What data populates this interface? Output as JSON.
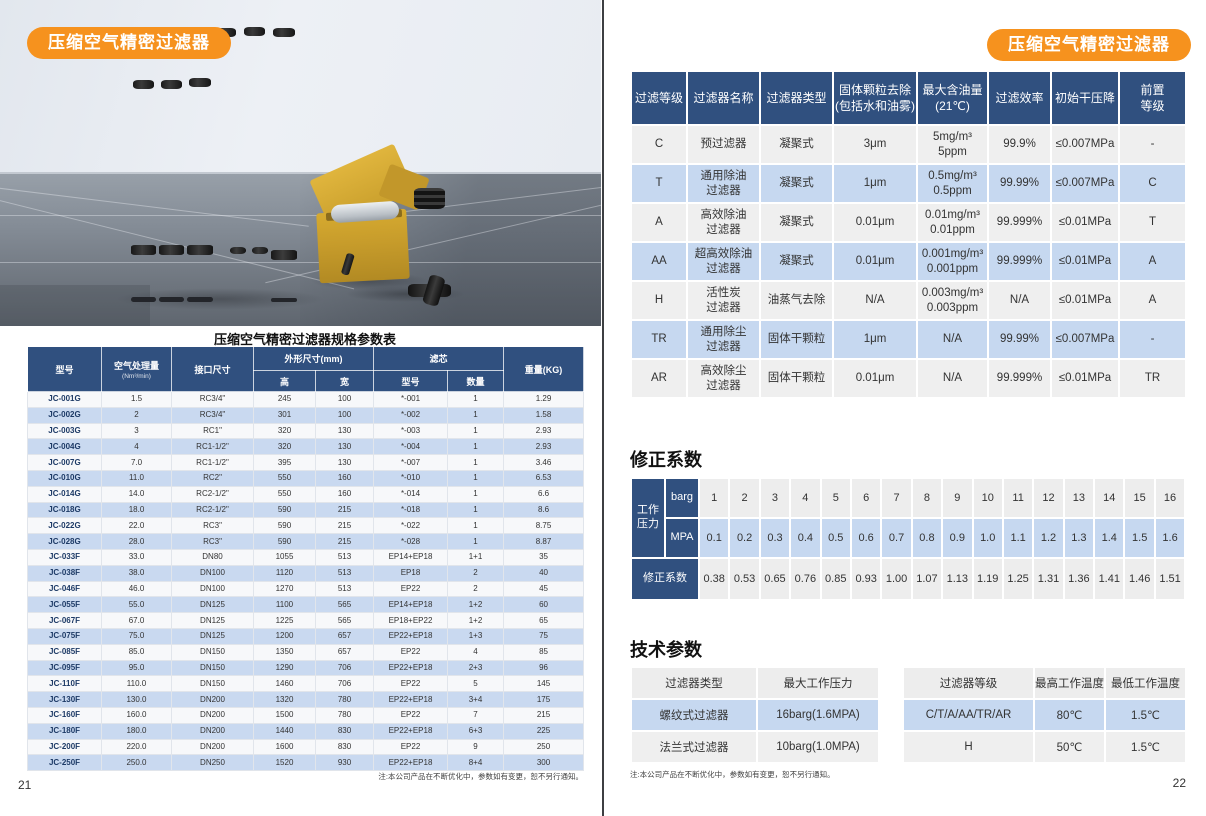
{
  "colors": {
    "accent_orange": "#F6921E",
    "table_header_navy": "#30507F",
    "row_blue": "#C6D8F0",
    "row_gray": "#EFEFEF"
  },
  "page_left": {
    "badge": "压缩空气精密过滤器",
    "page_number": "21",
    "note": "注:本公司产品在不断优化中，参数如有变更，恕不另行通知。",
    "spec_table": {
      "title": "压缩空气精密过滤器规格参数表",
      "headers": {
        "model": "型号",
        "capacity": "空气处理量",
        "capacity_unit": "(Nm³/min)",
        "port": "接口尺寸",
        "dimensions": "外形尺寸(mm)",
        "dim_height": "高",
        "dim_width": "宽",
        "element": "滤芯",
        "element_model": "型号",
        "element_qty": "数量",
        "weight": "重量(KG)"
      },
      "rows": [
        [
          "JC-001G",
          "1.5",
          "RC3/4\"",
          "245",
          "100",
          "*-001",
          "1",
          "1.29"
        ],
        [
          "JC-002G",
          "2",
          "RC3/4\"",
          "301",
          "100",
          "*-002",
          "1",
          "1.58"
        ],
        [
          "JC-003G",
          "3",
          "RC1\"",
          "320",
          "130",
          "*-003",
          "1",
          "2.93"
        ],
        [
          "JC-004G",
          "4",
          "RC1-1/2\"",
          "320",
          "130",
          "*-004",
          "1",
          "2.93"
        ],
        [
          "JC-007G",
          "7.0",
          "RC1-1/2\"",
          "395",
          "130",
          "*-007",
          "1",
          "3.46"
        ],
        [
          "JC-010G",
          "11.0",
          "RC2\"",
          "550",
          "160",
          "*-010",
          "1",
          "6.53"
        ],
        [
          "JC-014G",
          "14.0",
          "RC2-1/2\"",
          "550",
          "160",
          "*-014",
          "1",
          "6.6"
        ],
        [
          "JC-018G",
          "18.0",
          "RC2-1/2\"",
          "590",
          "215",
          "*-018",
          "1",
          "8.6"
        ],
        [
          "JC-022G",
          "22.0",
          "RC3\"",
          "590",
          "215",
          "*-022",
          "1",
          "8.75"
        ],
        [
          "JC-028G",
          "28.0",
          "RC3\"",
          "590",
          "215",
          "*-028",
          "1",
          "8.87"
        ],
        [
          "JC-033F",
          "33.0",
          "DN80",
          "1055",
          "513",
          "EP14+EP18",
          "1+1",
          "35"
        ],
        [
          "JC-038F",
          "38.0",
          "DN100",
          "1120",
          "513",
          "EP18",
          "2",
          "40"
        ],
        [
          "JC-046F",
          "46.0",
          "DN100",
          "1270",
          "513",
          "EP22",
          "2",
          "45"
        ],
        [
          "JC-055F",
          "55.0",
          "DN125",
          "1100",
          "565",
          "EP14+EP18",
          "1+2",
          "60"
        ],
        [
          "JC-067F",
          "67.0",
          "DN125",
          "1225",
          "565",
          "EP18+EP22",
          "1+2",
          "65"
        ],
        [
          "JC-075F",
          "75.0",
          "DN125",
          "1200",
          "657",
          "EP22+EP18",
          "1+3",
          "75"
        ],
        [
          "JC-085F",
          "85.0",
          "DN150",
          "1350",
          "657",
          "EP22",
          "4",
          "85"
        ],
        [
          "JC-095F",
          "95.0",
          "DN150",
          "1290",
          "706",
          "EP22+EP18",
          "2+3",
          "96"
        ],
        [
          "JC-110F",
          "110.0",
          "DN150",
          "1460",
          "706",
          "EP22",
          "5",
          "145"
        ],
        [
          "JC-130F",
          "130.0",
          "DN200",
          "1320",
          "780",
          "EP22+EP18",
          "3+4",
          "175"
        ],
        [
          "JC-160F",
          "160.0",
          "DN200",
          "1500",
          "780",
          "EP22",
          "7",
          "215"
        ],
        [
          "JC-180F",
          "180.0",
          "DN200",
          "1440",
          "830",
          "EP22+EP18",
          "6+3",
          "225"
        ],
        [
          "JC-200F",
          "220.0",
          "DN200",
          "1600",
          "830",
          "EP22",
          "9",
          "250"
        ],
        [
          "JC-250F",
          "250.0",
          "DN250",
          "1520",
          "930",
          "EP22+EP18",
          "8+4",
          "300"
        ]
      ]
    }
  },
  "page_right": {
    "badge": "压缩空气精密过滤器",
    "page_number": "22",
    "note": "注:本公司产品在不断优化中，参数如有变更，恕不另行通知。",
    "grade_table": {
      "headers": [
        "过滤等级",
        "过滤器名称",
        "过滤器类型",
        "固体颗粒去除\n(包括水和油雾)",
        "最大含油量\n(21℃)",
        "过滤效率",
        "初始干压降",
        "前置\n等级"
      ],
      "rows": [
        [
          "C",
          "预过滤器",
          "凝聚式",
          "3μm",
          "5mg/m³\n5ppm",
          "99.9%",
          "≤0.007MPa",
          "-"
        ],
        [
          "T",
          "通用除油\n过滤器",
          "凝聚式",
          "1μm",
          "0.5mg/m³\n0.5ppm",
          "99.99%",
          "≤0.007MPa",
          "C"
        ],
        [
          "A",
          "高效除油\n过滤器",
          "凝聚式",
          "0.01μm",
          "0.01mg/m³\n0.01ppm",
          "99.999%",
          "≤0.01MPa",
          "T"
        ],
        [
          "AA",
          "超高效除油\n过滤器",
          "凝聚式",
          "0.01μm",
          "0.001mg/m³\n0.001ppm",
          "99.999%",
          "≤0.01MPa",
          "A"
        ],
        [
          "H",
          "活性炭\n过滤器",
          "油蒸气去除",
          "N/A",
          "0.003mg/m³\n0.003ppm",
          "N/A",
          "≤0.01MPa",
          "A"
        ],
        [
          "TR",
          "通用除尘\n过滤器",
          "固体干颗粒",
          "1μm",
          "N/A",
          "99.99%",
          "≤0.007MPa",
          "-"
        ],
        [
          "AR",
          "高效除尘\n过滤器",
          "固体干颗粒",
          "0.01μm",
          "N/A",
          "99.999%",
          "≤0.01MPa",
          "TR"
        ]
      ]
    },
    "correction": {
      "title": "修正系数",
      "pressure_label": "工作压力",
      "barg_label": "barg",
      "mpa_label": "MPA",
      "coeff_label": "修正系数",
      "barg_values": [
        "1",
        "2",
        "3",
        "4",
        "5",
        "6",
        "7",
        "8",
        "9",
        "10",
        "11",
        "12",
        "13",
        "14",
        "15",
        "16"
      ],
      "mpa_values": [
        "0.1",
        "0.2",
        "0.3",
        "0.4",
        "0.5",
        "0.6",
        "0.7",
        "0.8",
        "0.9",
        "1.0",
        "1.1",
        "1.2",
        "1.3",
        "1.4",
        "1.5",
        "1.6"
      ],
      "coeff_values": [
        "0.38",
        "0.53",
        "0.65",
        "0.76",
        "0.85",
        "0.93",
        "1.00",
        "1.07",
        "1.13",
        "1.19",
        "1.25",
        "1.31",
        "1.36",
        "1.41",
        "1.46",
        "1.51"
      ]
    },
    "tech": {
      "title": "技术参数",
      "type_table": {
        "headers": [
          "过滤器类型",
          "最大工作压力"
        ],
        "rows": [
          [
            "螺纹式过滤器",
            "16barg(1.6MPA)"
          ],
          [
            "法兰式过滤器",
            "10barg(1.0MPA)"
          ]
        ]
      },
      "temp_table": {
        "headers": [
          "过滤器等级",
          "最高工作温度",
          "最低工作温度"
        ],
        "rows": [
          [
            "C/T/A/AA/TR/AR",
            "80℃",
            "1.5℃"
          ],
          [
            "H",
            "50℃",
            "1.5℃"
          ]
        ]
      }
    }
  }
}
